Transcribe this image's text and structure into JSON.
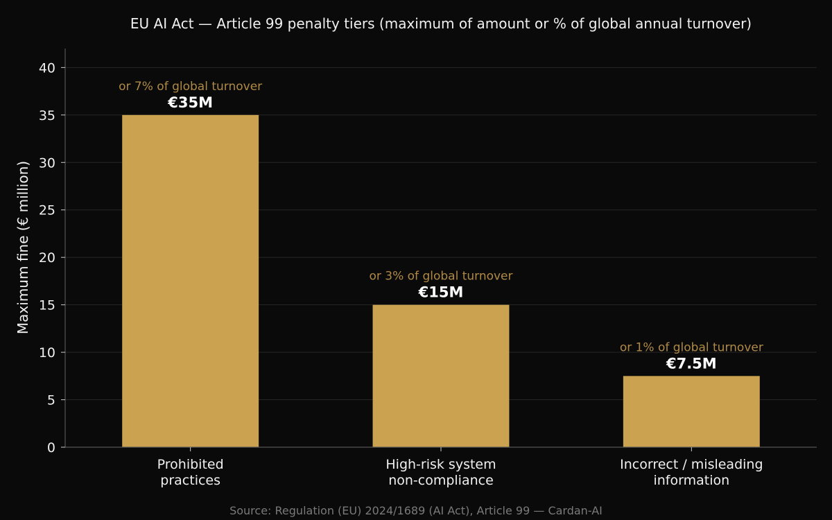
{
  "chart_data": {
    "type": "bar",
    "title": "EU AI Act — Article 99 penalty tiers (maximum of amount or % of global annual turnover)",
    "xlabel": "",
    "ylabel": "Maximum fine (€ million)",
    "ylim": [
      0,
      42
    ],
    "yticks": [
      0,
      5,
      10,
      15,
      20,
      25,
      30,
      35,
      40
    ],
    "grid": true,
    "categories": [
      [
        "Prohibited",
        "practices"
      ],
      [
        "High-risk system",
        "non-compliance"
      ],
      [
        "Incorrect / misleading",
        "information"
      ]
    ],
    "values": [
      35,
      15,
      7.5
    ],
    "value_labels": [
      "€35M",
      "€15M",
      "€7.5M"
    ],
    "annotations": [
      "or 7% of global turnover",
      "or 3% of global turnover",
      "or 1% of global turnover"
    ],
    "source": "Source: Regulation (EU) 2024/1689 (AI Act), Article 99 — Cardan-AI"
  },
  "colors": {
    "background": "#0a0a0a",
    "bar": "#cba24f",
    "annotation": "#b08a45",
    "grid": "#262626",
    "axis": "#555555"
  }
}
